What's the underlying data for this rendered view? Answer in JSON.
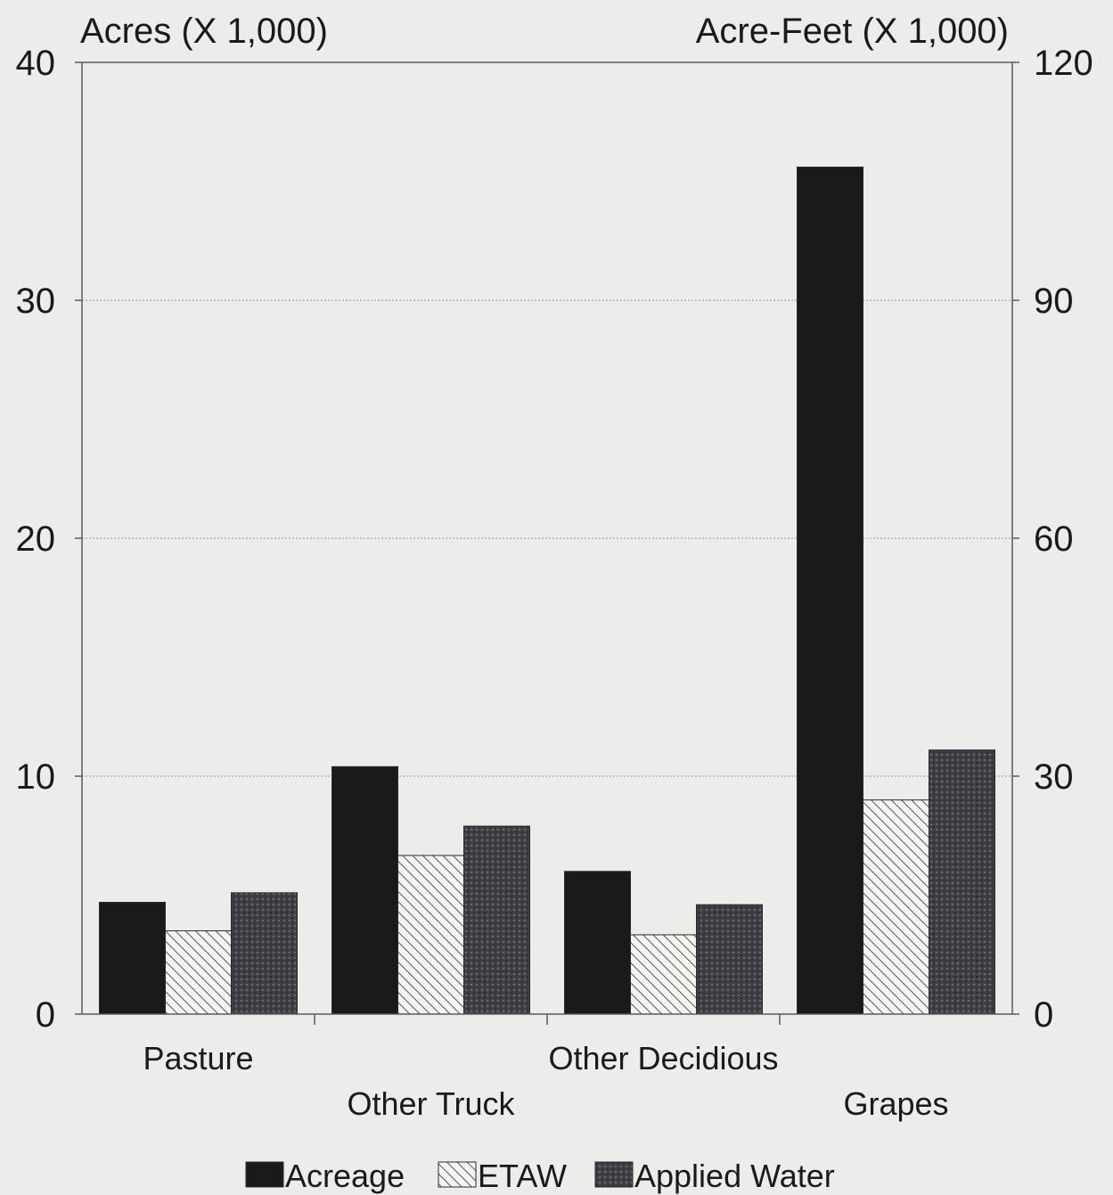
{
  "chart_data": {
    "type": "bar",
    "categories": [
      "Pasture",
      "Other Truck",
      "Other Decidious",
      "Grapes"
    ],
    "left_axis": {
      "title": "Acres (X 1,000)",
      "ylim": [
        0,
        40
      ],
      "ticks": [
        "0",
        "10",
        "20",
        "30",
        "40"
      ]
    },
    "right_axis": {
      "title": "Acre-Feet (X 1,000)",
      "ylim": [
        0,
        120
      ],
      "ticks": [
        "0",
        "30",
        "60",
        "90",
        "120"
      ]
    },
    "series": [
      {
        "name": "Acreage",
        "axis": "left",
        "values": [
          4.7,
          10.4,
          6.0,
          35.6
        ],
        "color": "#1a1a1a",
        "pattern": "solid"
      },
      {
        "name": "ETAW",
        "axis": "right",
        "values": [
          10.5,
          20.0,
          10.0,
          27.0
        ],
        "color": "#ffffff",
        "pattern": "hatch"
      },
      {
        "name": "Applied Water",
        "axis": "right",
        "values": [
          15.3,
          23.7,
          13.8,
          33.3
        ],
        "color": "#3d3d44",
        "pattern": "textured"
      }
    ],
    "grid": true,
    "legend_position": "bottom"
  }
}
